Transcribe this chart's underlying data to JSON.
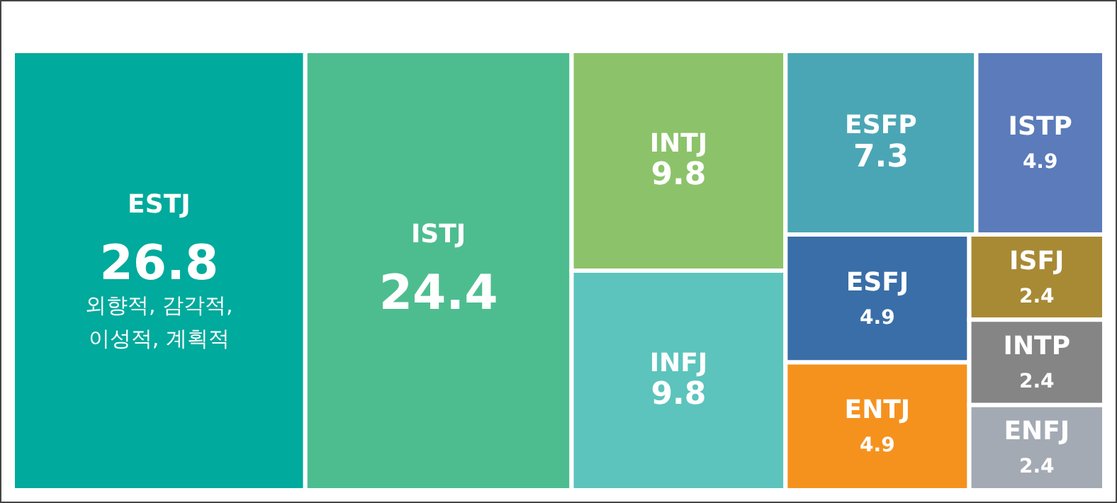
{
  "chart_data": {
    "type": "other",
    "data_labels": true,
    "categories": [
      "ESTJ",
      "ISTJ",
      "INTJ",
      "INFJ",
      "ESFP",
      "ISTP",
      "ESFJ",
      "ENTJ",
      "ISFJ",
      "INTP",
      "ENFJ"
    ],
    "values": [
      26.8,
      24.4,
      9.8,
      9.8,
      7.3,
      4.9,
      4.9,
      4.9,
      2.4,
      2.4,
      2.4
    ],
    "colors": [
      "#00aa9c",
      "#4dbd90",
      "#8cc36a",
      "#5cc4bc",
      "#4aa6b5",
      "#5b7bbb",
      "#3a6ea8",
      "#f5921e",
      "#a88a35",
      "#858585",
      "#a4aab3"
    ],
    "annotations": [
      {
        "text": "외향적, 감각적,\n이성적, 계획적",
        "x": "ESTJ"
      }
    ]
  }
}
